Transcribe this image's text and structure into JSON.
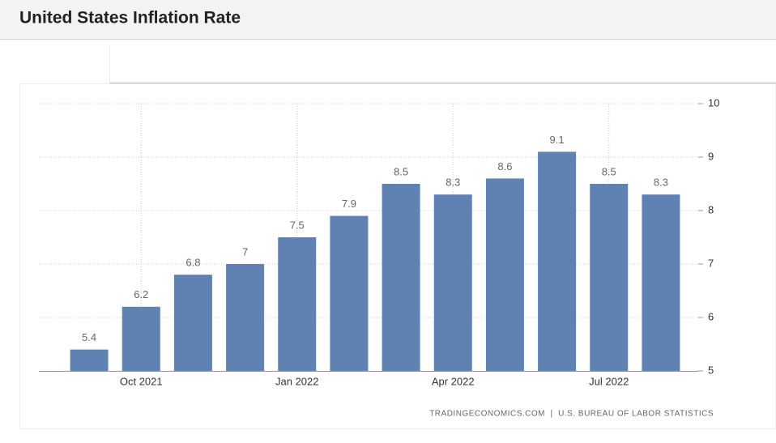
{
  "chart_data": {
    "type": "bar",
    "title": "United States Inflation Rate",
    "source": "TRADINGECONOMICS.COM  |  U.S. BUREAU OF LABOR STATISTICS",
    "categories": [
      null,
      "Oct 2021",
      null,
      null,
      "Jan 2022",
      null,
      null,
      "Apr 2022",
      null,
      null,
      "Jul 2022",
      null
    ],
    "values": [
      5.4,
      6.2,
      6.8,
      7,
      7.5,
      7.9,
      8.5,
      8.3,
      8.6,
      9.1,
      8.5,
      8.3
    ],
    "color": "#5f82b3",
    "ylim": [
      5,
      10
    ],
    "yticks": [
      5,
      6,
      7,
      8,
      9,
      10
    ],
    "grid": true
  }
}
